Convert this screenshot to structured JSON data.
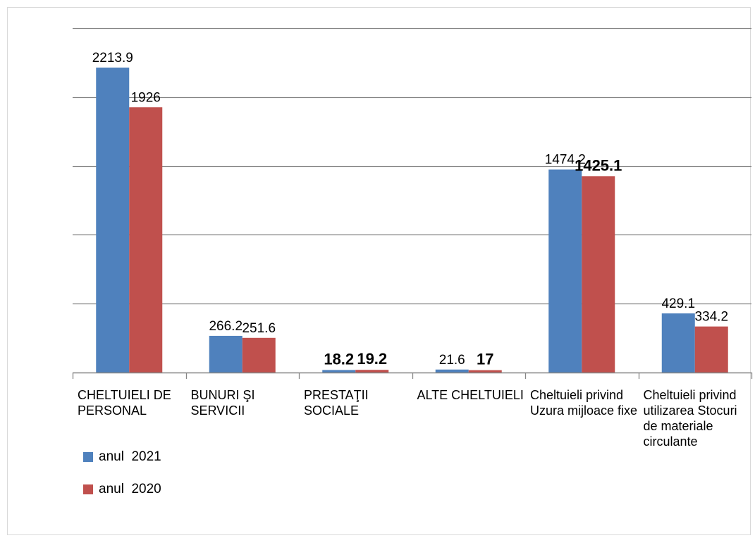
{
  "chart_data": {
    "type": "bar",
    "categories": [
      "CHELTUIELI DE PERSONAL",
      "BUNURI ŞI SERVICII",
      "PRESTAŢII SOCIALE",
      "ALTE CHELTUIELI",
      "Cheltuieli privind Uzura mijloace fixe",
      "Cheltuieli privind utilizarea Stocuri de materiale circulante"
    ],
    "series": [
      {
        "name": "anul  2021",
        "color": "#4f81bd",
        "values": [
          2213.9,
          266.2,
          18.2,
          21.6,
          1474.2,
          429.1
        ],
        "labels": [
          "2213.9",
          "266.2",
          "18.2",
          "21.6",
          "1474.2",
          "429.1"
        ],
        "label_bold": [
          false,
          false,
          true,
          false,
          false,
          false
        ]
      },
      {
        "name": "anul  2020",
        "color": "#c0504d",
        "values": [
          1926,
          251.6,
          19.2,
          17,
          1425.1,
          334.2
        ],
        "labels": [
          "1926",
          "251.6",
          "19.2",
          "17",
          "1425.1",
          "334.2"
        ],
        "label_bold": [
          false,
          false,
          true,
          true,
          true,
          false
        ]
      }
    ],
    "ylim": [
      0,
      2500
    ],
    "ytick_step": 500,
    "grid": true,
    "legend_position": "bottom-left",
    "title": "",
    "xlabel": "",
    "ylabel": ""
  }
}
